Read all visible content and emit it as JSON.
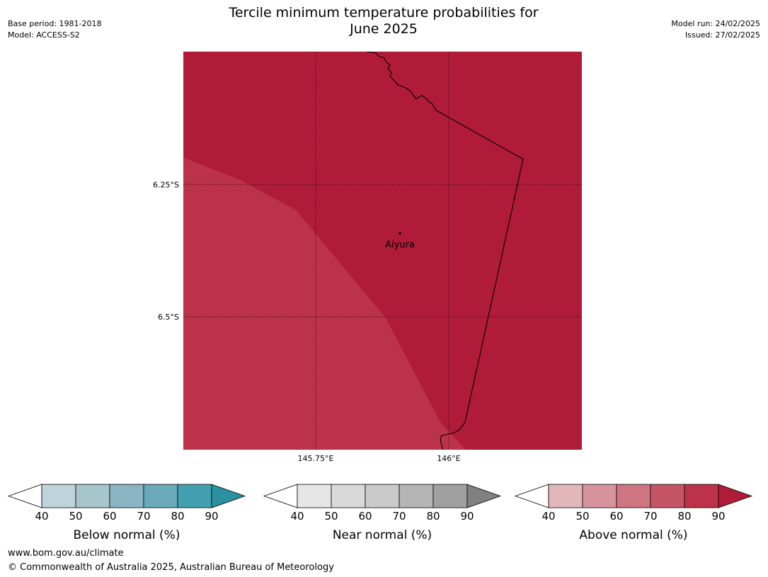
{
  "header": {
    "title_line1": "Tercile minimum temperature probabilities for",
    "title_line2": "June 2025",
    "base_period": "Base period: 1981-2018",
    "model": "Model: ACCESS-S2",
    "model_run": "Model run: 24/02/2025",
    "issued": "Issued: 27/02/2025"
  },
  "map": {
    "location_label": "Aiyura",
    "lat_labels": [
      "6.25°S",
      "6.5°S"
    ],
    "lon_labels": [
      "145.75°E",
      "146°E"
    ],
    "colors": {
      "above_80_90": "#b01c38",
      "above_70_80": "#bc3349",
      "border": "#000000",
      "gridline": "#000000"
    }
  },
  "legends": [
    {
      "title": "Below normal (%)",
      "ticks": [
        "40",
        "50",
        "60",
        "70",
        "80",
        "90"
      ],
      "colors": [
        "#ffffff",
        "#bfd3da",
        "#a7c5cb",
        "#8ab5c2",
        "#6aaaba",
        "#44a0b0",
        "#2a90a2"
      ]
    },
    {
      "title": "Near normal (%)",
      "ticks": [
        "40",
        "50",
        "60",
        "70",
        "80",
        "90"
      ],
      "colors": [
        "#ffffff",
        "#e6e6e6",
        "#d9d9d9",
        "#cacaca",
        "#b5b5b5",
        "#a0a0a0",
        "#808080"
      ]
    },
    {
      "title": "Above normal (%)",
      "ticks": [
        "40",
        "50",
        "60",
        "70",
        "80",
        "90"
      ],
      "colors": [
        "#ffffff",
        "#e2b7bc",
        "#d7949d",
        "#cd7580",
        "#c55466",
        "#bc3349",
        "#b01c38"
      ]
    }
  ],
  "footer": {
    "url": "www.bom.gov.au/climate",
    "copyright": "© Commonwealth of Australia 2025, Australian Bureau of Meteorology"
  }
}
